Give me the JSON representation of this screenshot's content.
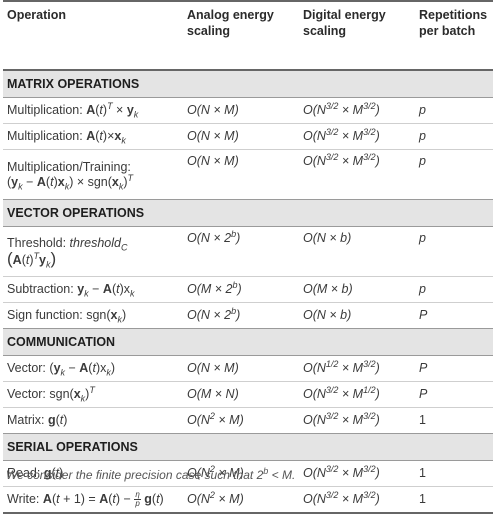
{
  "header": {
    "operation": "Operation",
    "analog": "Analog energy scaling",
    "digital": "Digital energy scaling",
    "repetitions": "Repetitions per batch"
  },
  "sections": {
    "matrix": "MATRIX OPERATIONS",
    "vector": "VECTOR OPERATIONS",
    "communication": "COMMUNICATION",
    "serial": "SERIAL OPERATIONS"
  },
  "labels": {
    "multiplication": "Multiplication:",
    "multiplication_training": "Multiplication/Training:",
    "threshold": "Threshold:",
    "subtraction": "Subtraction:",
    "sign_function": "Sign function:",
    "vector": "Vector:",
    "matrix": "Matrix:",
    "read": "Read:",
    "write": "Write:"
  },
  "reps": {
    "m1": "p",
    "m2": "p",
    "m3": "p",
    "v1": "p",
    "v2": "p",
    "v3": "P",
    "c1": "P",
    "c2": "P",
    "c3": "1",
    "s1": "1",
    "s2": "1"
  },
  "footnote": "We consider the finite precision case such that 2"
}
